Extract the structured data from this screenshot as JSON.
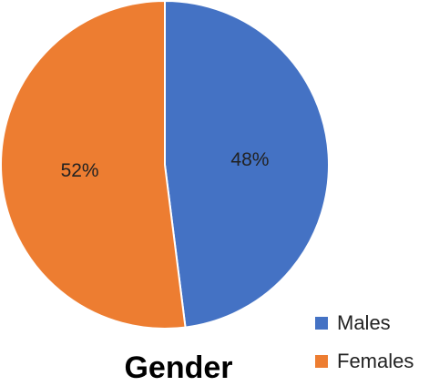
{
  "chart_data": {
    "type": "pie",
    "title": "Gender",
    "categories": [
      "Males",
      "Females"
    ],
    "values": [
      48,
      52
    ],
    "value_labels": [
      "48%",
      "52%"
    ],
    "colors": [
      "#4472C4",
      "#ED7D31"
    ],
    "start": "12 o'clock",
    "direction": "clockwise",
    "legend": "bottom-right"
  }
}
